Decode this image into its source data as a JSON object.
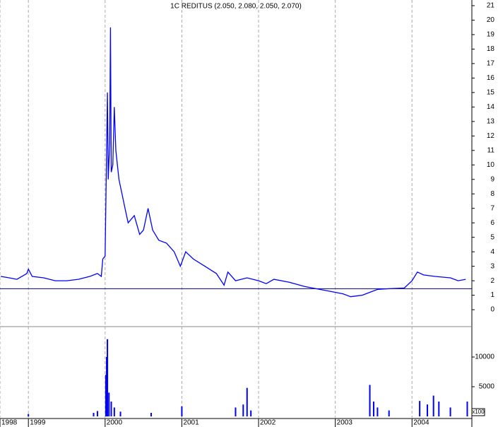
{
  "chart_data": [
    {
      "type": "line",
      "title": "1C REDITUS (2.050, 2.080, 2.050, 2.070)",
      "color": "#0000ff",
      "x": [
        1998.64,
        1998.75,
        1998.85,
        1998.98,
        1999.0,
        1999.05,
        1999.2,
        1999.35,
        1999.5,
        1999.65,
        1999.8,
        1999.9,
        1999.95,
        1999.97,
        2000.0,
        2000.03,
        2000.04,
        2000.06,
        2000.07,
        2000.08,
        2000.1,
        2000.12,
        2000.14,
        2000.18,
        2000.22,
        2000.26,
        2000.3,
        2000.38,
        2000.45,
        2000.5,
        2000.56,
        2000.62,
        2000.7,
        2000.8,
        2000.9,
        2000.98,
        2001.05,
        2001.15,
        2001.3,
        2001.45,
        2001.55,
        2001.6,
        2001.7,
        2001.85,
        2002.0,
        2002.1,
        2002.2,
        2002.4,
        2002.6,
        2002.8,
        2003.0,
        2003.1,
        2003.2,
        2003.35,
        2003.45,
        2003.55,
        2003.7,
        2003.9,
        2004.0,
        2004.07,
        2004.15,
        2004.3,
        2004.5,
        2004.6,
        2004.7
      ],
      "values": [
        2.3,
        2.2,
        2.1,
        2.5,
        2.8,
        2.3,
        2.2,
        2.0,
        2.0,
        2.1,
        2.3,
        2.5,
        2.3,
        3.5,
        3.7,
        15,
        9,
        11.5,
        19.5,
        9.5,
        10,
        14,
        11,
        9,
        8,
        7,
        6,
        6.5,
        5.2,
        5.5,
        7.0,
        5.5,
        4.8,
        4.6,
        4.0,
        3.0,
        4.0,
        3.5,
        3.0,
        2.5,
        1.7,
        2.6,
        2.0,
        2.2,
        2.0,
        1.8,
        2.1,
        1.9,
        1.6,
        1.4,
        1.2,
        1.1,
        0.9,
        1.0,
        1.2,
        1.4,
        1.45,
        1.5,
        2.0,
        2.6,
        2.4,
        2.3,
        2.2,
        2.0,
        2.1
      ],
      "hline": 1.45,
      "xlim": [
        1998.63,
        2004.78
      ],
      "xticks": [
        {
          "value": 1998.63,
          "label": "1998"
        },
        1999,
        2000,
        2001,
        2002,
        2003,
        2004
      ],
      "ylim": [
        -1.07,
        21.39
      ],
      "yticks": [
        0,
        1,
        2,
        3,
        4,
        5,
        6,
        7,
        8,
        9,
        10,
        11,
        12,
        13,
        14,
        15,
        16,
        17,
        18,
        19,
        20,
        21
      ]
    },
    {
      "type": "bar",
      "color": "#0000ff",
      "unit_label": "x100",
      "x": [
        1999.0,
        1999.85,
        1999.9,
        2000.01,
        2000.02,
        2000.03,
        2000.05,
        2000.08,
        2000.12,
        2000.2,
        2000.6,
        2001.0,
        2001.7,
        2001.8,
        2001.85,
        2001.9,
        2003.45,
        2003.5,
        2003.55,
        2003.7,
        2004.1,
        2004.2,
        2004.28,
        2004.35,
        2004.5,
        2004.72
      ],
      "values": [
        400,
        600,
        900,
        7000,
        10000,
        13000,
        4000,
        2500,
        1500,
        800,
        600,
        1700,
        1500,
        2000,
        4800,
        1000,
        5300,
        2500,
        1500,
        1000,
        2600,
        2000,
        3500,
        2500,
        1500,
        2500
      ],
      "xlim": [
        1998.63,
        2004.78
      ],
      "ylim": [
        0,
        14760
      ],
      "yticks": [
        5000,
        10000
      ]
    }
  ]
}
